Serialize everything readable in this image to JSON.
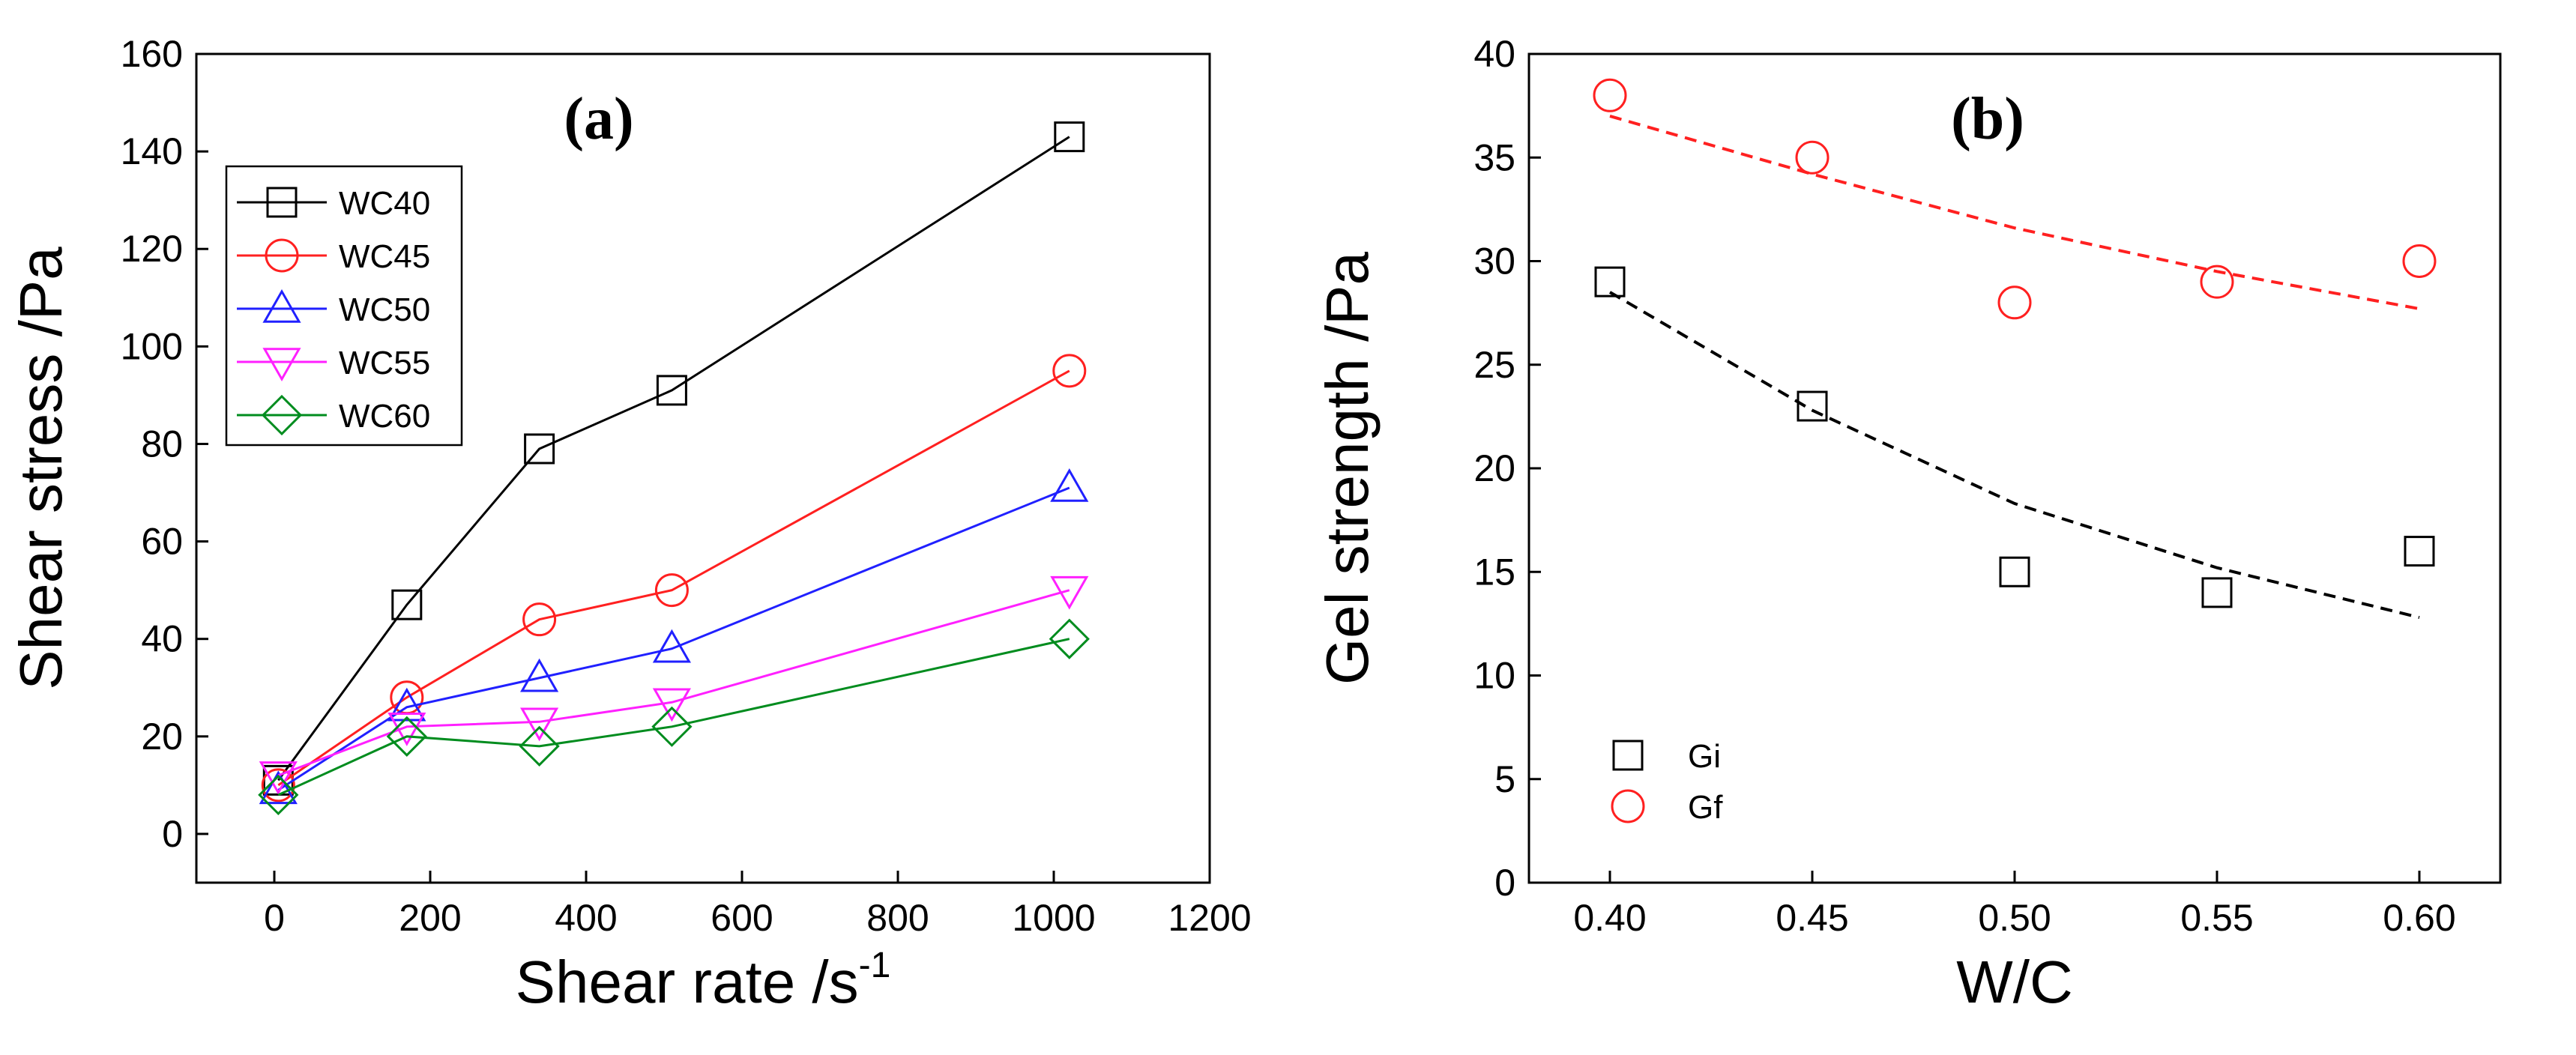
{
  "chart_data": [
    {
      "panel": "(a)",
      "type": "line",
      "xlabel": "Shear rate /s",
      "xlabel_sup": "-1",
      "ylabel": "Shear stress /Pa",
      "xlim": [
        -100,
        1200
      ],
      "ylim": [
        -10,
        160
      ],
      "xticks": [
        0,
        200,
        400,
        600,
        800,
        1000,
        1200
      ],
      "yticks": [
        0,
        20,
        40,
        60,
        80,
        100,
        120,
        140,
        160
      ],
      "legend_position": "top-left",
      "x": [
        5.1,
        170,
        340,
        510,
        1020
      ],
      "series": [
        {
          "name": "WC40",
          "color": "#000000",
          "marker": "square",
          "values": [
            11,
            47,
            79,
            91,
            143
          ]
        },
        {
          "name": "WC45",
          "color": "#ff2020",
          "marker": "circle",
          "values": [
            10,
            28,
            44,
            50,
            95
          ]
        },
        {
          "name": "WC50",
          "color": "#2020ff",
          "marker": "triangle-up",
          "values": [
            9,
            26,
            32,
            38,
            71
          ]
        },
        {
          "name": "WC55",
          "color": "#ff20ff",
          "marker": "triangle-down",
          "values": [
            12,
            22,
            23,
            27,
            50
          ]
        },
        {
          "name": "WC60",
          "color": "#008c1e",
          "marker": "diamond",
          "values": [
            8,
            20,
            18,
            22,
            40
          ]
        }
      ]
    },
    {
      "panel": "(b)",
      "type": "scatter",
      "xlabel": "W/C",
      "ylabel": "Gel strength /Pa",
      "xlim": [
        0.38,
        0.62
      ],
      "ylim": [
        0,
        40
      ],
      "xticks": [
        "0.40",
        "0.45",
        "0.50",
        "0.55",
        "0.60"
      ],
      "yticks": [
        0,
        5,
        10,
        15,
        20,
        25,
        30,
        35,
        40
      ],
      "legend_position": "bottom-left",
      "x": [
        0.4,
        0.45,
        0.5,
        0.55,
        0.6
      ],
      "series": [
        {
          "name": "Gi",
          "color": "#000000",
          "marker": "square",
          "values": [
            29,
            23,
            15,
            14,
            16
          ],
          "fit": {
            "style": "dashed",
            "x": [
              0.4,
              0.45,
              0.5,
              0.55,
              0.6
            ],
            "y": [
              28.5,
              22.8,
              18.3,
              15.2,
              12.8
            ]
          }
        },
        {
          "name": "Gf",
          "color": "#ff2020",
          "marker": "circle",
          "values": [
            38,
            35,
            28,
            29,
            30
          ],
          "fit": {
            "style": "dashed",
            "x": [
              0.4,
              0.45,
              0.5,
              0.55,
              0.6
            ],
            "y": [
              37.0,
              34.2,
              31.6,
              29.5,
              27.7
            ]
          }
        }
      ]
    }
  ]
}
